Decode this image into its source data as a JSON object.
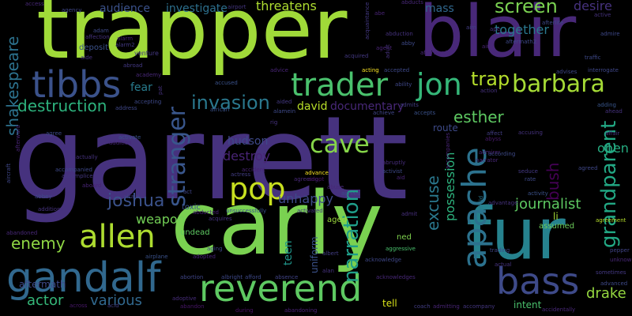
{
  "cloud": {
    "background": "#000000",
    "palette": [
      "#440154",
      "#46327e",
      "#365c8d",
      "#277f8e",
      "#1fa187",
      "#4ac16d",
      "#a0da39",
      "#fde725"
    ],
    "words": [
      {
        "text": "garrett",
        "color": "#46327e"
      },
      {
        "text": "trapper",
        "color": "#a0da39"
      },
      {
        "text": "carly",
        "color": "#7ad151"
      },
      {
        "text": "blair",
        "color": "#482878"
      },
      {
        "text": "fur",
        "color": "#26828e"
      },
      {
        "text": "gandalf",
        "color": "#31688e"
      },
      {
        "text": "reverend",
        "color": "#5ec962"
      },
      {
        "text": "tibbs",
        "color": "#3b528b"
      },
      {
        "text": "trader",
        "color": "#4ac16d"
      },
      {
        "text": "jon",
        "color": "#35b779"
      },
      {
        "text": "bass",
        "color": "#3e4a89"
      },
      {
        "text": "apache",
        "color": "#2c728e"
      },
      {
        "text": "allen",
        "color": "#addc30"
      },
      {
        "text": "pop",
        "color": "#c8e020"
      },
      {
        "text": "barbara",
        "color": "#a5db36"
      },
      {
        "text": "stranger",
        "color": "#39568c"
      },
      {
        "text": "grandparent",
        "color": "#22a884"
      },
      {
        "text": "narration",
        "color": "#1f9e89"
      },
      {
        "text": "invasion",
        "color": "#2a788e"
      },
      {
        "text": "destruction",
        "color": "#2db27d"
      },
      {
        "text": "screen",
        "color": "#7ad151"
      },
      {
        "text": "cave",
        "color": "#86d549"
      },
      {
        "text": "joshua",
        "color": "#3b528b"
      },
      {
        "text": "shakespeare",
        "color": "#2c728e"
      },
      {
        "text": "trap",
        "color": "#b5de2b"
      },
      {
        "text": "esther",
        "color": "#5ec962"
      },
      {
        "text": "enemy",
        "color": "#8fd744"
      },
      {
        "text": "actor",
        "color": "#35b779"
      },
      {
        "text": "various",
        "color": "#31688e"
      },
      {
        "text": "drake",
        "color": "#95d840"
      },
      {
        "text": "excuse",
        "color": "#2a788e"
      },
      {
        "text": "bush",
        "color": "#440154"
      },
      {
        "text": "journalist",
        "color": "#5ec962"
      },
      {
        "text": "possession",
        "color": "#2db27d"
      },
      {
        "text": "open",
        "color": "#26ad81"
      },
      {
        "text": "destroy",
        "color": "#482475"
      },
      {
        "text": "hudson",
        "color": "#3e4989"
      },
      {
        "text": "unhappy",
        "color": "#3e4a89"
      },
      {
        "text": "weapon",
        "color": "#73d056"
      },
      {
        "text": "threatens",
        "color": "#addc30"
      },
      {
        "text": "david",
        "color": "#b8de29"
      },
      {
        "text": "together",
        "color": "#2a788e"
      },
      {
        "text": "desire",
        "color": "#46327e"
      },
      {
        "text": "audience",
        "color": "#3b528b"
      },
      {
        "text": "investigate",
        "color": "#2d708e"
      },
      {
        "text": "mass",
        "color": "#31688e"
      },
      {
        "text": "fear",
        "color": "#287c8e"
      },
      {
        "text": "documentary",
        "color": "#482878"
      },
      {
        "text": "teen",
        "color": "#1f968b"
      },
      {
        "text": "uniform",
        "color": "#3b528b"
      },
      {
        "text": "route",
        "color": "#3e4a89"
      },
      {
        "text": "li",
        "color": "#a5db36"
      },
      {
        "text": "assumed",
        "color": "#6ccd5a"
      },
      {
        "text": "tell",
        "color": "#d8e219"
      },
      {
        "text": "intent",
        "color": "#4ac16d"
      },
      {
        "text": "undead",
        "color": "#5ec962"
      },
      {
        "text": "ned",
        "color": "#7fd34e"
      },
      {
        "text": "toxic",
        "color": "#3b528b"
      },
      {
        "text": "aged",
        "color": "#9bd93c"
      },
      {
        "text": "aftermath",
        "color": "#3e4a89"
      },
      {
        "text": "across",
        "color": "#48186a"
      },
      {
        "text": "acid",
        "color": "#433e85"
      },
      {
        "text": "airplane",
        "color": "#3b528b"
      },
      {
        "text": "absence",
        "color": "#414487"
      },
      {
        "text": "accidentally",
        "color": "#482878"
      },
      {
        "text": "accompany",
        "color": "#453781"
      },
      {
        "text": "coach",
        "color": "#433e85"
      },
      {
        "text": "admitting",
        "color": "#482576"
      },
      {
        "text": "during",
        "color": "#471063"
      },
      {
        "text": "abandoning",
        "color": "#482173"
      },
      {
        "text": "abandon",
        "color": "#481668"
      },
      {
        "text": "adoptive",
        "color": "#472d7b"
      },
      {
        "text": "albright",
        "color": "#3e4989"
      },
      {
        "text": "abortion",
        "color": "#404688"
      },
      {
        "text": "acknowledge",
        "color": "#3f4788"
      },
      {
        "text": "acknowledges",
        "color": "#482878"
      },
      {
        "text": "alan",
        "color": "#46337f"
      },
      {
        "text": "albert",
        "color": "#433e85"
      },
      {
        "text": "aggressive",
        "color": "#4ac16d"
      },
      {
        "text": "admit",
        "color": "#472f7d"
      },
      {
        "text": "trading",
        "color": "#404688"
      },
      {
        "text": "actual",
        "color": "#46327e"
      },
      {
        "text": "sometimes",
        "color": "#443983"
      },
      {
        "text": "unknown",
        "color": "#482878"
      },
      {
        "text": "pepper",
        "color": "#414487"
      },
      {
        "text": "advanced",
        "color": "#3e4989"
      },
      {
        "text": "agreement",
        "color": "#b5de2b"
      },
      {
        "text": "activity",
        "color": "#3b528b"
      },
      {
        "text": "agreed",
        "color": "#3f4788"
      },
      {
        "text": "seduce",
        "color": "#443983"
      },
      {
        "text": "rate",
        "color": "#3e4989"
      },
      {
        "text": "advantage",
        "color": "#46327e"
      },
      {
        "text": "airfield",
        "color": "#2a788e"
      },
      {
        "text": "admirer",
        "color": "#482475"
      },
      {
        "text": "affair",
        "color": "#453882"
      },
      {
        "text": "adding",
        "color": "#39568c"
      },
      {
        "text": "ahead",
        "color": "#46327e"
      },
      {
        "text": "according",
        "color": "#3e4a89"
      },
      {
        "text": "narrator",
        "color": "#482878"
      },
      {
        "text": "abyss",
        "color": "#481a6c"
      },
      {
        "text": "accusing",
        "color": "#46337f"
      },
      {
        "text": "affect",
        "color": "#433e85"
      },
      {
        "text": "accompanies",
        "color": "#482576"
      },
      {
        "text": "achieve",
        "color": "#404688"
      },
      {
        "text": "accepts",
        "color": "#3b528b"
      },
      {
        "text": "admits",
        "color": "#433e85"
      },
      {
        "text": "abruptly",
        "color": "#472d7b"
      },
      {
        "text": "activist",
        "color": "#3e4a89"
      },
      {
        "text": "aid",
        "color": "#482475"
      },
      {
        "text": "agrees",
        "color": "#3f4788"
      },
      {
        "text": "abuse",
        "color": "#482878"
      },
      {
        "text": "activated",
        "color": "#453781"
      },
      {
        "text": "unsuccessfully",
        "color": "#3b528b"
      },
      {
        "text": "abducted",
        "color": "#482173"
      },
      {
        "text": "acquires",
        "color": "#46337f"
      },
      {
        "text": "accident",
        "color": "#482475"
      },
      {
        "text": "actress",
        "color": "#433e85"
      },
      {
        "text": "agreeing",
        "color": "#482878"
      },
      {
        "text": "adopt",
        "color": "#471365"
      },
      {
        "text": "advance",
        "color": "#fde725"
      },
      {
        "text": "act",
        "color": "#404688"
      },
      {
        "text": "afford",
        "color": "#3e4989"
      },
      {
        "text": "adopted",
        "color": "#482576"
      },
      {
        "text": "aging",
        "color": "#3f4788"
      },
      {
        "text": "abbey",
        "color": "#3e4a89"
      },
      {
        "text": "additional",
        "color": "#46327e"
      },
      {
        "text": "abandoned",
        "color": "#482878"
      },
      {
        "text": "afraid",
        "color": "#433e85"
      },
      {
        "text": "aboard",
        "color": "#482475"
      },
      {
        "text": "accomplice",
        "color": "#453882"
      },
      {
        "text": "accompanied",
        "color": "#3e4989"
      },
      {
        "text": "actually",
        "color": "#46327e"
      },
      {
        "text": "addition",
        "color": "#482878"
      },
      {
        "text": "activate",
        "color": "#3b528b"
      },
      {
        "text": "agree",
        "color": "#3e4a89"
      },
      {
        "text": "aircraft",
        "color": "#3f4788"
      },
      {
        "text": "afterward",
        "color": "#482475"
      },
      {
        "text": "african",
        "color": "#3b528b"
      },
      {
        "text": "alamein",
        "color": "#3e4a89"
      },
      {
        "text": "aided",
        "color": "#443983"
      },
      {
        "text": "rig",
        "color": "#46327e"
      },
      {
        "text": "accused",
        "color": "#3b528b"
      },
      {
        "text": "accepting",
        "color": "#3e4989"
      },
      {
        "text": "address",
        "color": "#3f4788"
      },
      {
        "text": "academy",
        "color": "#482878"
      },
      {
        "text": "pat",
        "color": "#46327e"
      },
      {
        "text": "abroad",
        "color": "#443983"
      },
      {
        "text": "deposit",
        "color": "#3b528b"
      },
      {
        "text": "aide",
        "color": "#46327e"
      },
      {
        "text": "venture",
        "color": "#453882"
      },
      {
        "text": "alarm",
        "color": "#482475"
      },
      {
        "text": "adam",
        "color": "#3e4989"
      },
      {
        "text": "affection",
        "color": "#46327e"
      },
      {
        "text": "agency",
        "color": "#3f4788"
      },
      {
        "text": "access",
        "color": "#482878"
      },
      {
        "text": "airport",
        "color": "#453781"
      },
      {
        "text": "advice",
        "color": "#482576"
      },
      {
        "text": "agent",
        "color": "#482475"
      },
      {
        "text": "acquired",
        "color": "#443983"
      },
      {
        "text": "acting",
        "color": "#fde725"
      },
      {
        "text": "accepted",
        "color": "#3e4989"
      },
      {
        "text": "ability",
        "color": "#3f4788"
      },
      {
        "text": "abduction",
        "color": "#46327e"
      },
      {
        "text": "abby",
        "color": "#3e4a89"
      },
      {
        "text": "adult",
        "color": "#46327e"
      },
      {
        "text": "abe",
        "color": "#482475"
      },
      {
        "text": "acquaintance",
        "color": "#443983"
      },
      {
        "text": "abducts",
        "color": "#482878"
      },
      {
        "text": "ape",
        "color": "#46327e"
      },
      {
        "text": "aftermath2",
        "color": "#3e4989"
      },
      {
        "text": "afterlife",
        "color": "#3e4a89"
      },
      {
        "text": "active",
        "color": "#46327e"
      },
      {
        "text": "advises",
        "color": "#3f4788"
      },
      {
        "text": "interrogate",
        "color": "#3f4788"
      },
      {
        "text": "traffic",
        "color": "#3e4989"
      },
      {
        "text": "air",
        "color": "#482475"
      },
      {
        "text": "afterwards",
        "color": "#482878"
      },
      {
        "text": "action",
        "color": "#46327e"
      },
      {
        "text": "admire",
        "color": "#3e4989"
      },
      {
        "text": "aim",
        "color": "#433e85"
      },
      {
        "text": "alarm2",
        "color": "#443983"
      }
    ]
  }
}
